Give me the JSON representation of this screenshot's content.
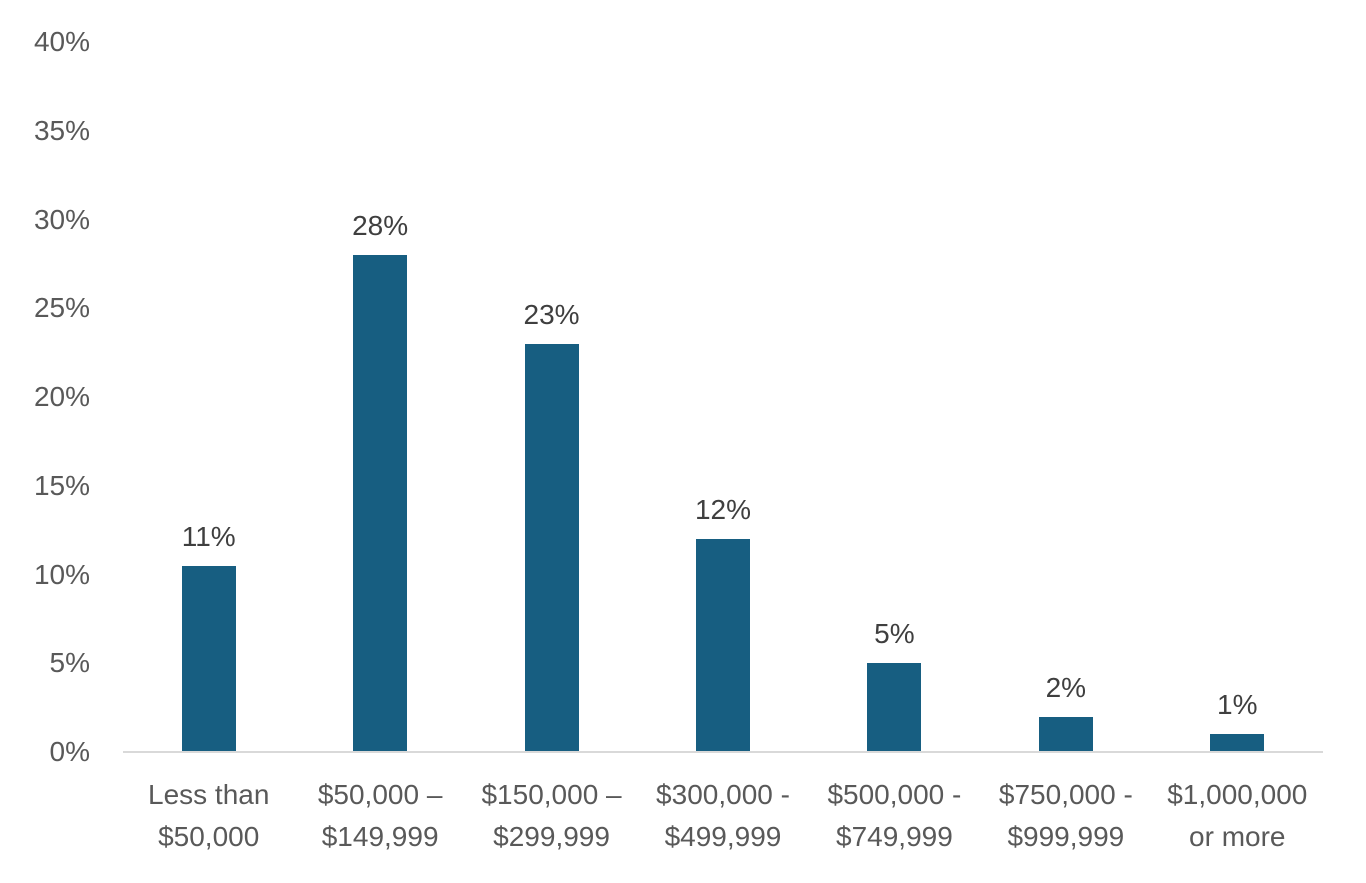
{
  "chart_data": {
    "type": "bar",
    "title": "",
    "xlabel": "",
    "ylabel": "",
    "categories": [
      "Less than\n$50,000",
      "$50,000 –\n$149,999",
      "$150,000 –\n$299,999",
      "$300,000 -\n$499,999",
      "$500,000 -\n$749,999",
      "$750,000 -\n$999,999",
      "$1,000,000\nor more"
    ],
    "values": [
      11,
      28,
      23,
      12,
      5,
      2,
      1
    ],
    "bar_labels": [
      "11%",
      "28%",
      "23%",
      "12%",
      "5%",
      "2%",
      "1%"
    ],
    "drawn_values": [
      10.5,
      28,
      23,
      12,
      5,
      2,
      1
    ],
    "ylim": [
      0,
      40
    ],
    "ytick_step": 5,
    "ytick_labels": [
      "0%",
      "5%",
      "10%",
      "15%",
      "20%",
      "25%",
      "30%",
      "35%",
      "40%"
    ],
    "grid": false,
    "legend": false,
    "colors": {
      "bar": "#175E81",
      "value_label": "#3F3F3F",
      "axis_text": "#595959",
      "axis_line": "#D9D9D9",
      "background": "#FFFFFF"
    }
  }
}
